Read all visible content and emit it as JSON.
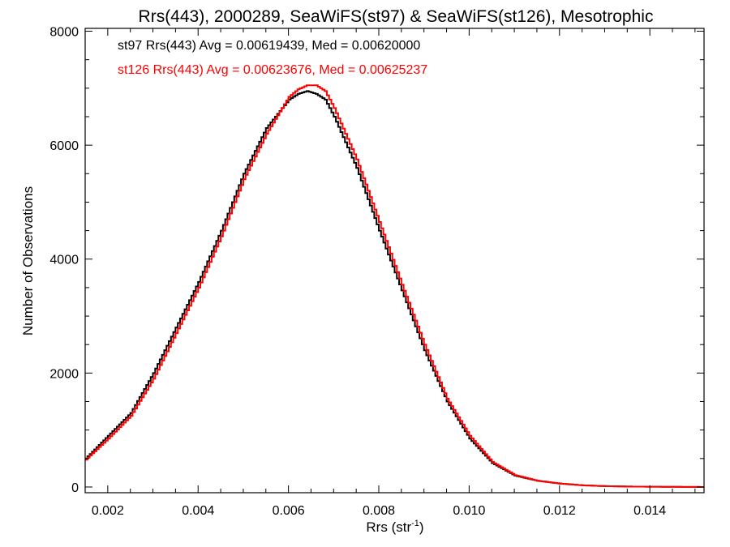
{
  "chart_data": {
    "type": "line",
    "step": true,
    "title": "Rrs(443), 2000289, SeaWiFS(st97) & SeaWiFS(st126), Mesotrophic",
    "xlabel_main": "Rrs (str",
    "xlabel_sup": "-1",
    "xlabel_close": ")",
    "ylabel": "Number of Observations",
    "xlim": [
      0.0015,
      0.0152
    ],
    "ylim": [
      -100,
      8050
    ],
    "xticks": [
      {
        "value": 0.002,
        "label": "0.002"
      },
      {
        "value": 0.004,
        "label": "0.004"
      },
      {
        "value": 0.006,
        "label": "0.006"
      },
      {
        "value": 0.008,
        "label": "0.008"
      },
      {
        "value": 0.01,
        "label": "0.010"
      },
      {
        "value": 0.012,
        "label": "0.012"
      },
      {
        "value": 0.014,
        "label": "0.014"
      }
    ],
    "yticks": [
      {
        "value": 0,
        "label": "0"
      },
      {
        "value": 2000,
        "label": "2000"
      },
      {
        "value": 4000,
        "label": "4000"
      },
      {
        "value": 6000,
        "label": "6000"
      },
      {
        "value": 8000,
        "label": "8000"
      }
    ],
    "annotations": [
      {
        "text": "st97 Rrs(443) Avg = 0.00619439, Med = 0.00620000",
        "color": "#000000"
      },
      {
        "text": "st126 Rrs(443) Avg = 0.00623676, Med = 0.00625237",
        "color": "#ff0000"
      }
    ],
    "series": [
      {
        "name": "st97",
        "color": "#000000",
        "x": [
          0.0015,
          0.002,
          0.0025,
          0.003,
          0.0035,
          0.004,
          0.0045,
          0.005,
          0.0055,
          0.006,
          0.0062,
          0.0064,
          0.0066,
          0.0068,
          0.007,
          0.0075,
          0.008,
          0.0085,
          0.009,
          0.0095,
          0.01,
          0.0105,
          0.011,
          0.0115,
          0.012,
          0.0125,
          0.013,
          0.0135,
          0.014,
          0.0145,
          0.0152
        ],
        "y": [
          500,
          900,
          1300,
          2000,
          2800,
          3600,
          4500,
          5500,
          6300,
          6800,
          6900,
          6950,
          6900,
          6800,
          6500,
          5600,
          4500,
          3450,
          2400,
          1500,
          850,
          420,
          200,
          110,
          60,
          30,
          15,
          8,
          5,
          3,
          0
        ]
      },
      {
        "name": "st126",
        "color": "#ff0000",
        "x": [
          0.0015,
          0.002,
          0.0025,
          0.003,
          0.0035,
          0.004,
          0.0045,
          0.005,
          0.0055,
          0.006,
          0.0062,
          0.0064,
          0.0066,
          0.0068,
          0.007,
          0.0075,
          0.008,
          0.0085,
          0.009,
          0.0095,
          0.01,
          0.0105,
          0.011,
          0.0115,
          0.012,
          0.0125,
          0.013,
          0.0135,
          0.014,
          0.0145,
          0.0152
        ],
        "y": [
          480,
          850,
          1250,
          1900,
          2700,
          3500,
          4400,
          5400,
          6200,
          6850,
          6980,
          7050,
          7050,
          6950,
          6650,
          5750,
          4650,
          3550,
          2500,
          1550,
          900,
          440,
          210,
          110,
          60,
          30,
          15,
          8,
          5,
          3,
          0
        ]
      }
    ]
  }
}
